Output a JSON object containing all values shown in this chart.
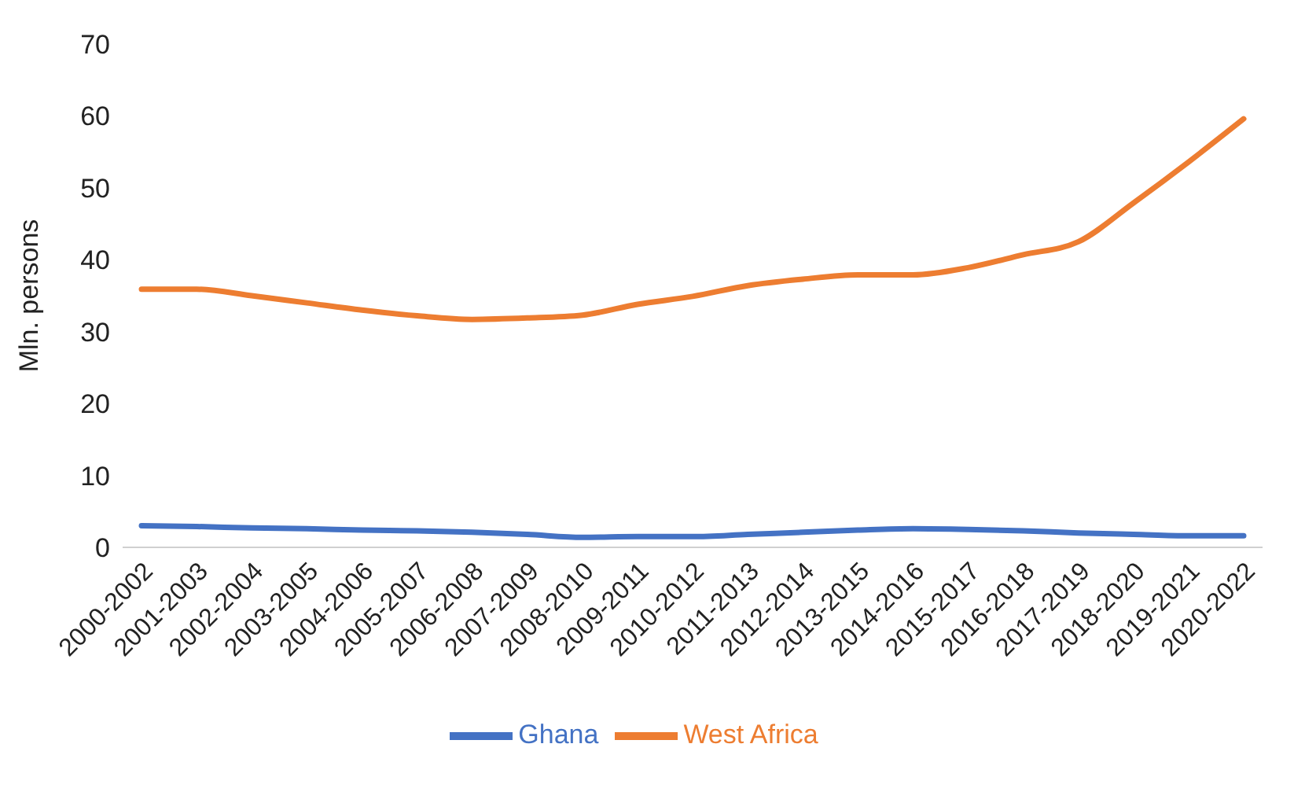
{
  "chart_data": {
    "type": "line",
    "ylabel": "Mln. persons",
    "categories": [
      "2000-2002",
      "2001-2003",
      "2002-2004",
      "2003-2005",
      "2004-2006",
      "2005-2007",
      "2006-2008",
      "2007-2009",
      "2008-2010",
      "2009-2011",
      "2010-2012",
      "2011-2013",
      "2012-2014",
      "2013-2015",
      "2014-2016",
      "2015-2017",
      "2016-2018",
      "2017-2019",
      "2018-2020",
      "2019-2021",
      "2020-2022"
    ],
    "series": [
      {
        "name": "Ghana",
        "color": "#4472c4",
        "values": [
          3.0,
          2.9,
          2.7,
          2.6,
          2.4,
          2.3,
          2.1,
          1.8,
          1.4,
          1.5,
          1.5,
          1.8,
          2.1,
          2.4,
          2.6,
          2.5,
          2.3,
          2.0,
          1.8,
          1.6,
          1.6
        ]
      },
      {
        "name": "West Africa",
        "color": "#ed7d31",
        "values": [
          35.9,
          35.9,
          35.0,
          34.0,
          33.0,
          32.2,
          31.7,
          31.9,
          32.3,
          33.8,
          34.9,
          36.4,
          37.3,
          37.9,
          37.9,
          38.9,
          40.7,
          42.5,
          47.9,
          53.6,
          59.6
        ]
      }
    ],
    "ylim": [
      0,
      70
    ],
    "yticks": [
      0,
      10,
      20,
      30,
      40,
      50,
      60,
      70
    ],
    "grid": false,
    "legend": "bottom",
    "marker": "none",
    "line_style": "solid"
  }
}
